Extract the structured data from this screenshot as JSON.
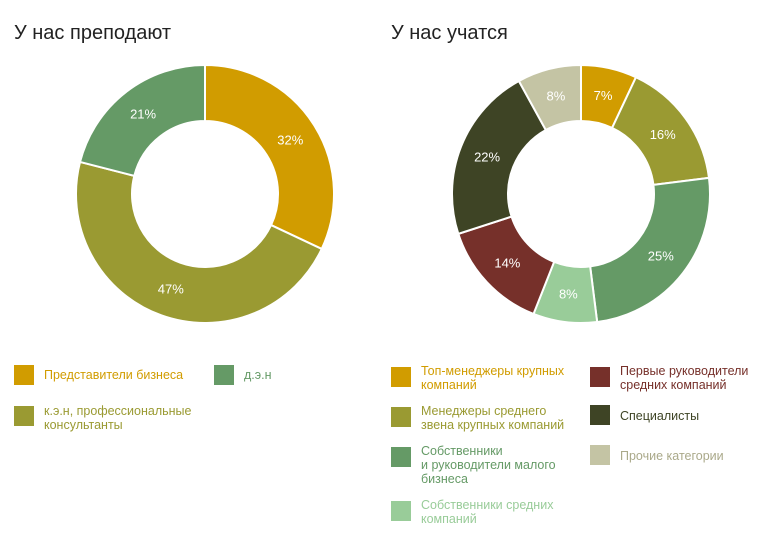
{
  "chart_data": [
    {
      "type": "pie",
      "title": "У нас преподают",
      "series": [
        {
          "label": "Представители бизнеса",
          "value": 32,
          "display": "32%",
          "color": "#d19c00"
        },
        {
          "label": "к.э.н, профессиональные\nконсультанты",
          "value": 47,
          "display": "47%",
          "color": "#9a9a32"
        },
        {
          "label": "д.э.н",
          "value": 21,
          "display": "21%",
          "color": "#659a66"
        }
      ]
    },
    {
      "type": "pie",
      "title": "У нас учатся",
      "series": [
        {
          "label": "Топ-менеджеры крупных\nкомпаний",
          "value": 7,
          "display": "7%",
          "color": "#d19c00"
        },
        {
          "label": "Менеджеры среднего\nзвена крупных компаний",
          "value": 16,
          "display": "16%",
          "color": "#9a9a32"
        },
        {
          "label": "Собственники\nи руководители малого\nбизнеса",
          "value": 25,
          "display": "25%",
          "color": "#659a66"
        },
        {
          "label": "Собственники средних\nкомпаний",
          "value": 8,
          "display": "8%",
          "color": "#99cc99"
        },
        {
          "label": "Первые руководители\nсредних компаний",
          "value": 14,
          "display": "14%",
          "color": "#76302a"
        },
        {
          "label": "Специалисты",
          "value": 22,
          "display": "22%",
          "color": "#3e4425"
        },
        {
          "label": "Прочие категории",
          "value": 8,
          "display": "8%",
          "color": "#c4c4a4"
        }
      ]
    }
  ]
}
